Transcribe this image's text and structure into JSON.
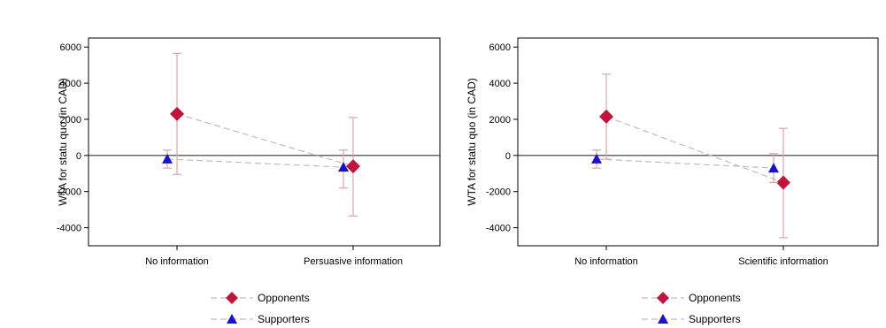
{
  "chart_data": [
    {
      "type": "scatter",
      "title": "",
      "xlabel": "",
      "ylabel": "WTA for statu quo (in CAD)",
      "categories": [
        "No information",
        "Persuasive information"
      ],
      "ylim": [
        -5000,
        6500
      ],
      "yticks": [
        6000,
        4000,
        2000,
        0,
        -2000,
        -4000
      ],
      "ytick_labels": [
        "6000",
        "4000",
        "2000",
        "0",
        "-2000",
        "-4000"
      ],
      "reference_line_y": 0,
      "legend_position": "bottom",
      "series": [
        {
          "name": "Opponents",
          "marker": "diamond",
          "color": "#c0143c",
          "values": [
            2300,
            -600
          ],
          "ci_low": [
            -1050,
            -3350
          ],
          "ci_high": [
            5650,
            2100
          ]
        },
        {
          "name": "Supporters",
          "marker": "triangle",
          "color": "#1a12c8",
          "values": [
            -200,
            -650
          ],
          "ci_low": [
            -700,
            -1800
          ],
          "ci_high": [
            300,
            300
          ]
        }
      ]
    },
    {
      "type": "scatter",
      "title": "",
      "xlabel": "",
      "ylabel": "WTA for statu quo (in CAD)",
      "categories": [
        "No information",
        "Scientific information"
      ],
      "ylim": [
        -5000,
        6500
      ],
      "yticks": [
        6000,
        4000,
        2000,
        0,
        -2000,
        -4000
      ],
      "ytick_labels": [
        "6000",
        "4000",
        "2000",
        "0",
        "-2000",
        "-4000"
      ],
      "reference_line_y": 0,
      "legend_position": "bottom",
      "series": [
        {
          "name": "Opponents",
          "marker": "diamond",
          "color": "#c0143c",
          "values": [
            2150,
            -1500
          ],
          "ci_low": [
            -200,
            -4550
          ],
          "ci_high": [
            4500,
            1500
          ]
        },
        {
          "name": "Supporters",
          "marker": "triangle",
          "color": "#1a12c8",
          "values": [
            -200,
            -700
          ],
          "ci_low": [
            -700,
            -1500
          ],
          "ci_high": [
            300,
            100
          ]
        }
      ]
    }
  ]
}
